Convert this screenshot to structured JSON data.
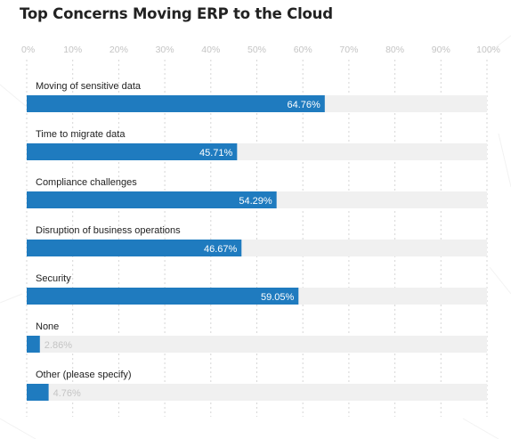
{
  "chart_data": {
    "type": "bar",
    "orientation": "horizontal",
    "title": "Top Concerns Moving ERP to the Cloud",
    "xlim": [
      0,
      100
    ],
    "x_ticks": [
      "0%",
      "10%",
      "20%",
      "30%",
      "40%",
      "50%",
      "60%",
      "70%",
      "80%",
      "90%",
      "100%"
    ],
    "categories": [
      "Moving of sensitive data",
      "Time to migrate data",
      "Compliance challenges",
      "Disruption of business operations",
      "Security",
      "None",
      "Other (please specify)"
    ],
    "values": [
      64.76,
      45.71,
      54.29,
      46.67,
      59.05,
      2.86,
      4.76
    ],
    "value_labels": [
      "64.76%",
      "45.71%",
      "54.29%",
      "46.67%",
      "59.05%",
      "2.86%",
      "4.76%"
    ],
    "grid": true,
    "legend": "none",
    "colors": {
      "bar": "#1f7bbf",
      "track": "#f0f0f0",
      "grid": "#d6d6d6",
      "tick_text": "#c4c4c4",
      "label_text": "#222222"
    }
  }
}
